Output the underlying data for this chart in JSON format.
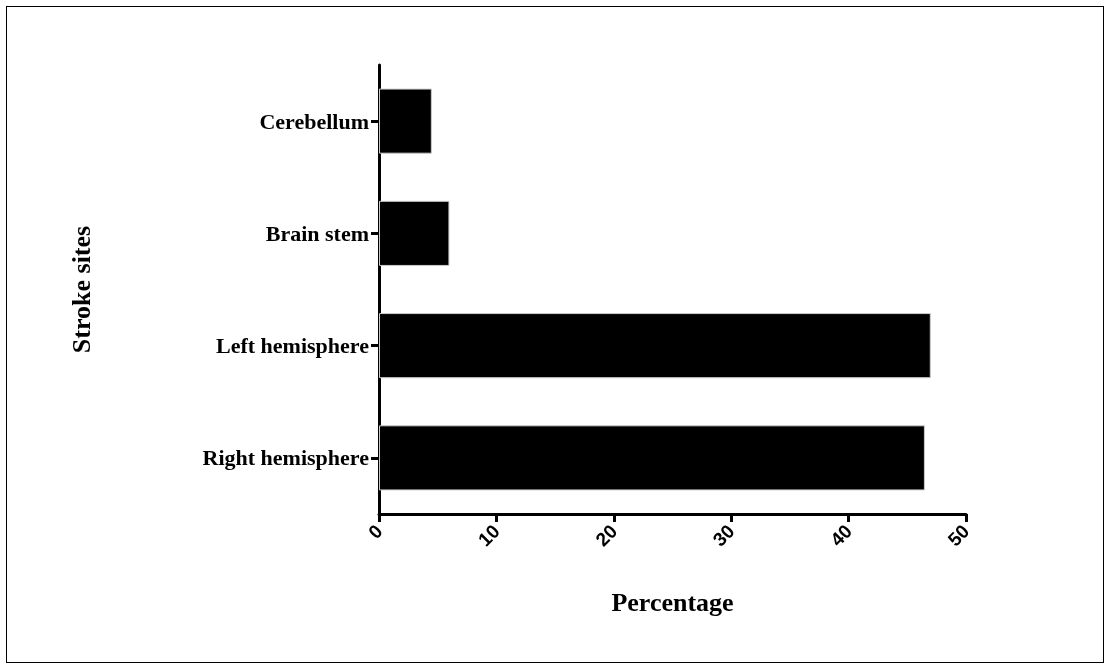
{
  "chart_data": {
    "type": "bar",
    "orientation": "horizontal",
    "xlabel": "Percentage",
    "ylabel": "Stroke sites",
    "categories": [
      "Cerebellum",
      "Brain stem",
      "Left hemisphere",
      "Right hemisphere"
    ],
    "values": [
      4.5,
      6,
      47,
      46.5
    ],
    "color": "#000000",
    "xlim": [
      0,
      50
    ],
    "xticks": [
      0,
      10,
      20,
      30,
      40,
      50
    ],
    "grid": false
  }
}
